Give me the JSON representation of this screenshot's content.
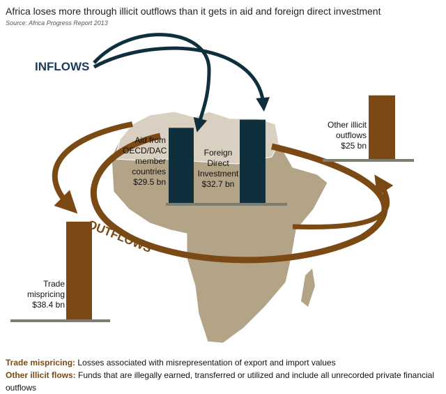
{
  "chart_data": {
    "type": "bar",
    "title": "Africa loses more through illicit outflows than it gets in aid and foreign direct investment",
    "subtitle": "Source: Africa Progress Report 2013",
    "categories": [
      "Aid from OECD/DAC member countries",
      "Foreign Direct Investment",
      "Other illicit outflows",
      "Trade mispricing"
    ],
    "values": [
      29.5,
      32.7,
      25,
      38.4
    ],
    "value_labels": [
      "$29.5 bn",
      "$32.7 bn",
      "$25 bn",
      "$38.4 bn"
    ],
    "colors": [
      "#0f2f3c",
      "#0f2f3c",
      "#7b4a14",
      "#7b4a14"
    ],
    "annotations": [
      "INFLOWS",
      "OUTFLOWS"
    ],
    "notes": [
      {
        "term": "Trade mispricing:",
        "text": "Losses associated with misrepresentation of export and import values"
      },
      {
        "term": "Other illicit flows:",
        "text": "Funds that are illegally earned, transferred or utilized and include all unrecorded private financial outflows"
      }
    ]
  }
}
